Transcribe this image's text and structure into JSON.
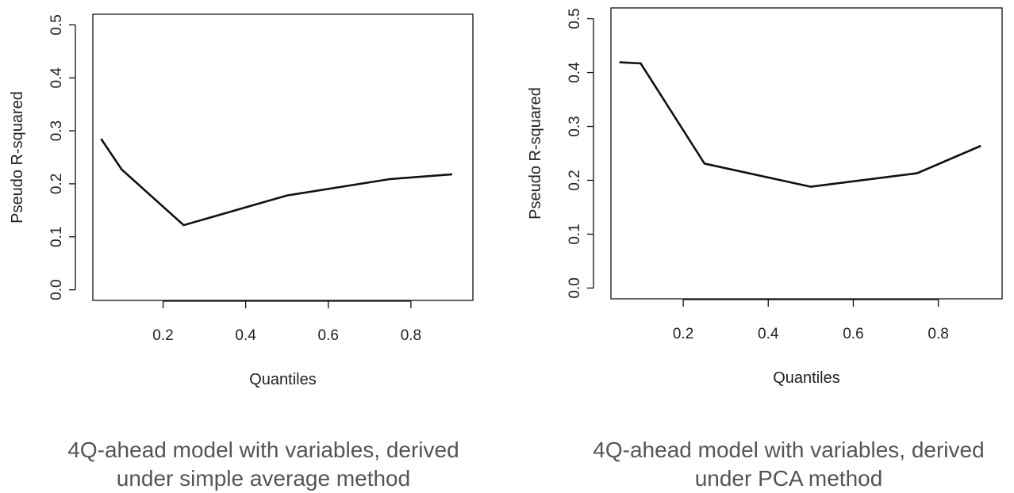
{
  "chart_data": [
    {
      "type": "line",
      "caption_lines": [
        "4Q-ahead model with variables, derived",
        "under simple average method"
      ],
      "xlabel": "Quantiles",
      "ylabel": "Pseudo R-squared",
      "x": [
        0.05,
        0.1,
        0.25,
        0.5,
        0.75,
        0.9
      ],
      "y": [
        0.285,
        0.227,
        0.122,
        0.178,
        0.209,
        0.218
      ],
      "xlim": [
        0.03,
        0.95
      ],
      "ylim": [
        -0.02,
        0.52
      ],
      "xticks": [
        0.2,
        0.4,
        0.6,
        0.8
      ],
      "xtick_labels": [
        "0.2",
        "0.4",
        "0.6",
        "0.8"
      ],
      "yticks": [
        0.0,
        0.1,
        0.2,
        0.3,
        0.4,
        0.5
      ],
      "ytick_labels": [
        "0.0",
        "0.1",
        "0.2",
        "0.3",
        "0.4",
        "0.5"
      ],
      "grid": false
    },
    {
      "type": "line",
      "caption_lines": [
        "4Q-ahead model with variables, derived",
        "under PCA method"
      ],
      "xlabel": "Quantiles",
      "ylabel": "Pseudo R-squared",
      "x": [
        0.05,
        0.1,
        0.25,
        0.5,
        0.75,
        0.9
      ],
      "y": [
        0.419,
        0.417,
        0.231,
        0.188,
        0.213,
        0.264
      ],
      "xlim": [
        0.03,
        0.95
      ],
      "ylim": [
        -0.02,
        0.52
      ],
      "xticks": [
        0.2,
        0.4,
        0.6,
        0.8
      ],
      "xtick_labels": [
        "0.2",
        "0.4",
        "0.6",
        "0.8"
      ],
      "yticks": [
        0.0,
        0.1,
        0.2,
        0.3,
        0.4,
        0.5
      ],
      "ytick_labels": [
        "0.0",
        "0.1",
        "0.2",
        "0.3",
        "0.4",
        "0.5"
      ],
      "grid": false
    }
  ]
}
